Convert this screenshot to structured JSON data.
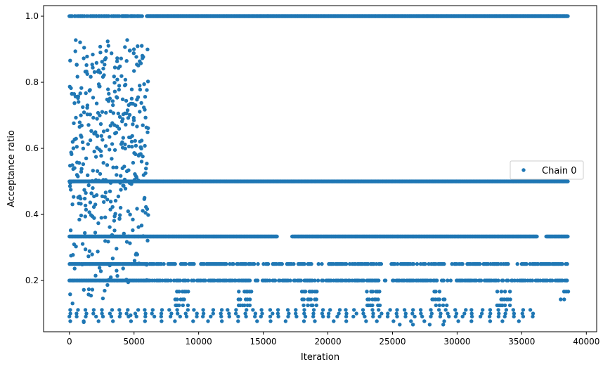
{
  "chart_data": {
    "type": "scatter",
    "title": "",
    "xlabel": "Iteration",
    "ylabel": "Acceptance ratio",
    "xlim": [
      -2000,
      40800
    ],
    "ylim": [
      0.045,
      1.032
    ],
    "xticks": [
      0,
      5000,
      10000,
      15000,
      20000,
      25000,
      30000,
      35000,
      40000
    ],
    "xtick_labels": [
      "0",
      "5000",
      "10000",
      "15000",
      "20000",
      "25000",
      "30000",
      "35000",
      "40000"
    ],
    "yticks": [
      0.2,
      0.4,
      0.6,
      0.8,
      1.0
    ],
    "ytick_labels": [
      "0.2",
      "0.4",
      "0.6",
      "0.8",
      "1.0"
    ],
    "grid": false,
    "legend": {
      "placement": "center-right",
      "entries": [
        "Chain 0"
      ]
    },
    "series": [
      {
        "name": "Chain 0",
        "color": "#1f77b4",
        "marker": "point",
        "description_of_distribution": "dense dots",
        "bands": [
          {
            "y": 1.0,
            "x_range": [
              0,
              38600
            ],
            "density": "dense (sparser 0-6000)"
          },
          {
            "y": 0.5,
            "x_range": [
              0,
              38600
            ],
            "density": "dense"
          },
          {
            "y": 0.3333,
            "x_range": [
              0,
              38600
            ],
            "density": "dense (small gaps near 16500 and 37000)"
          },
          {
            "y": 0.25,
            "x_range": [
              0,
              38600
            ],
            "density": "medium"
          },
          {
            "y": 0.2,
            "x_range": [
              0,
              38600
            ],
            "density": "medium"
          },
          {
            "y": 0.1667,
            "x_range": [
              7500,
              38600
            ],
            "density": "sparse clusters"
          },
          {
            "y": 0.1429,
            "x_range": [
              7500,
              38600
            ],
            "density": "sparse clusters"
          },
          {
            "y": 0.125,
            "x_range": [
              7500,
              36000
            ],
            "density": "sparse clusters"
          },
          {
            "y": 0.1111,
            "x_range": [
              0,
              36000
            ],
            "density": "sparse"
          },
          {
            "y": 0.1,
            "x_range": [
              0,
              36000
            ],
            "density": "sparse"
          },
          {
            "y": 0.0909,
            "x_range": [
              0,
              36000
            ],
            "density": "sparse"
          },
          {
            "y": 0.0769,
            "x_range": [
              0,
              35000
            ],
            "density": "very sparse"
          },
          {
            "y": 0.0667,
            "x_range": [
              25500,
              30000
            ],
            "density": "very sparse"
          }
        ],
        "early_phase": {
          "x_range": [
            0,
            6100
          ],
          "y_range": [
            0.07,
            0.94
          ],
          "density": "dense, all intermediate levels"
        }
      }
    ]
  }
}
